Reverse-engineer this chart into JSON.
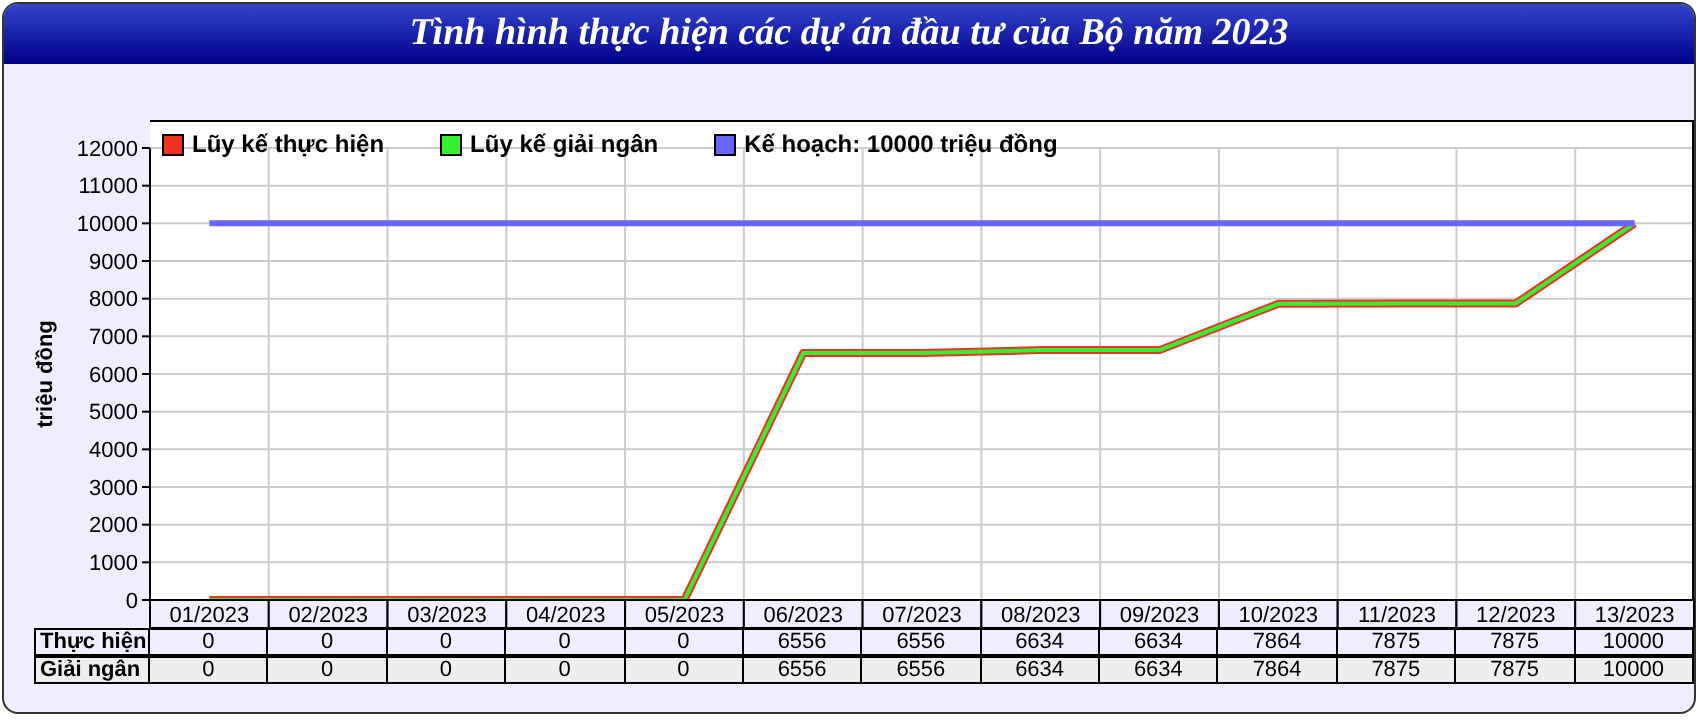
{
  "chart_data": {
    "type": "line",
    "title": "Tình hình thực hiện các dự án đầu tư của Bộ năm 2023",
    "ylabel": "triệu đồng",
    "categories": [
      "01/2023",
      "02/2023",
      "03/2023",
      "04/2023",
      "05/2023",
      "06/2023",
      "07/2023",
      "08/2023",
      "09/2023",
      "10/2023",
      "11/2023",
      "12/2023",
      "13/2023"
    ],
    "series": [
      {
        "name": "Lũy kế thực hiện",
        "color": "#ee3322",
        "values": [
          0,
          0,
          0,
          0,
          0,
          6556,
          6556,
          6634,
          6634,
          7864,
          7875,
          7875,
          10000
        ],
        "value_labels": [
          "0",
          "0",
          "0",
          "0",
          "0",
          "6556",
          "6556",
          "6634",
          "6634",
          "7864",
          "7875",
          "7875",
          "10000"
        ]
      },
      {
        "name": "Lũy kế giải ngân",
        "color": "#33ee33",
        "values": [
          0,
          0,
          0,
          0,
          0,
          6556,
          6556,
          6634,
          6634,
          7864,
          7875,
          7875,
          10000
        ],
        "value_labels": [
          "0",
          "0",
          "0",
          "0",
          "0",
          "6556",
          "6556",
          "6634",
          "6634",
          "7864",
          "7875",
          "7875",
          "10000"
        ]
      },
      {
        "name": "Kế hoạch: 10000 triệu đồng",
        "color": "#6666ff",
        "values": [
          10000,
          10000,
          10000,
          10000,
          10000,
          10000,
          10000,
          10000,
          10000,
          10000,
          10000,
          10000,
          10000
        ]
      }
    ],
    "ylim": [
      0,
      12000
    ],
    "yticks": [
      0,
      1000,
      2000,
      3000,
      4000,
      5000,
      6000,
      7000,
      8000,
      9000,
      10000,
      11000,
      12000
    ],
    "grid": true,
    "legend": "top left",
    "marker": "none",
    "line_style": "solid",
    "annotations": [
      "Thực hiện",
      "Giải ngân"
    ]
  }
}
